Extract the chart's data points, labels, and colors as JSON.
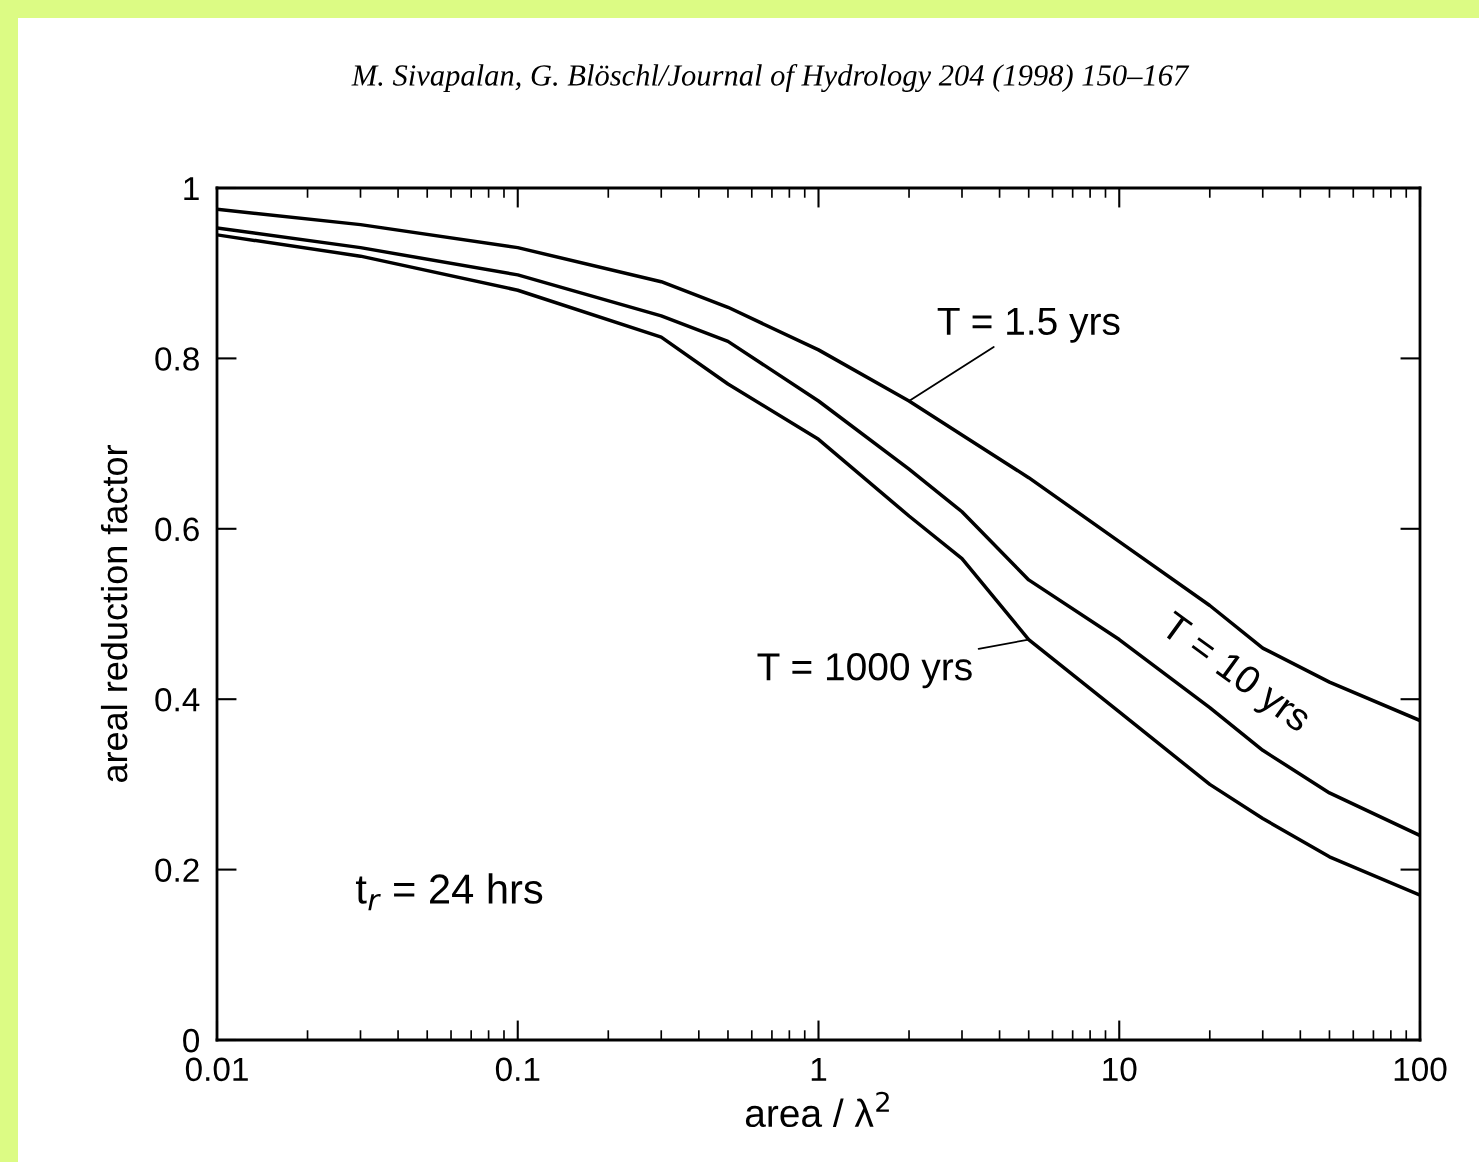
{
  "chart_data": {
    "type": "line",
    "xlabel": "area / λ$^{2}$",
    "ylabel": "areal reduction factor",
    "x": [
      0.01,
      0.03,
      0.1,
      0.3,
      0.5,
      1,
      2,
      3,
      5,
      10,
      20,
      30,
      50,
      100
    ],
    "series": [
      {
        "name": "T = 1.5 yrs",
        "color": "#000000",
        "values": [
          0.975,
          0.957,
          0.93,
          0.89,
          0.86,
          0.81,
          0.75,
          0.71,
          0.66,
          0.585,
          0.51,
          0.46,
          0.42,
          0.375
        ]
      },
      {
        "name": "T = 10 yrs",
        "color": "#000000",
        "values": [
          0.953,
          0.93,
          0.898,
          0.85,
          0.82,
          0.75,
          0.67,
          0.62,
          0.54,
          0.47,
          0.39,
          0.34,
          0.29,
          0.24
        ]
      },
      {
        "name": "T = 1000 yrs",
        "color": "#000000",
        "values": [
          0.945,
          0.92,
          0.88,
          0.825,
          0.77,
          0.705,
          0.615,
          0.565,
          0.47,
          0.385,
          0.3,
          0.26,
          0.215,
          0.17
        ]
      }
    ],
    "log": "x",
    "xlim": [
      0.01,
      100
    ],
    "xticks": [
      0.01,
      0.1,
      1,
      10,
      100
    ],
    "ylim": [
      0,
      1
    ],
    "yticks": [
      0,
      0.2,
      0.4,
      0.6,
      0.8,
      1
    ],
    "grid": false,
    "marker": "none",
    "line_style": "solid",
    "annotations": [
      "M. Sivapalan, G. Blöschl/Journal of Hydrology 204 (1998) 150–167",
      "t$_{r}$ = 24 hrs"
    ]
  }
}
